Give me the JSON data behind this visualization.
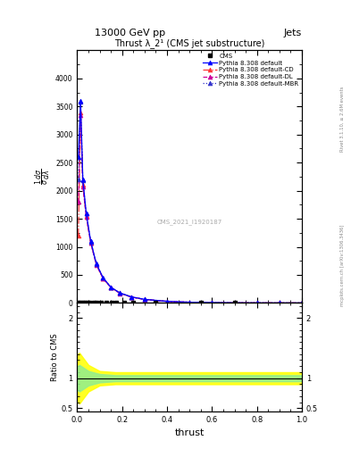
{
  "title_top": "13000 GeV pp",
  "title_right": "Jets",
  "plot_title": "Thrust λ_2¹ (CMS jet substructure)",
  "watermark": "CMS_2021_I1920187",
  "xlabel": "thrust",
  "ylabel_ratio": "Ratio to CMS",
  "right_label_top": "Rivet 3.1.10, ≥ 2.6M events",
  "right_label_bot": "mcplots.cern.ch [arXiv:1306.3436]",
  "cms_x": [
    0.005,
    0.015,
    0.025,
    0.035,
    0.045,
    0.055,
    0.075,
    0.085,
    0.105,
    0.13,
    0.155,
    0.175,
    0.21,
    0.25,
    0.35,
    0.55,
    0.7
  ],
  "cms_y": [
    2,
    2,
    2,
    2,
    2,
    2,
    2,
    2,
    2,
    2,
    2,
    2,
    2,
    2,
    2,
    2,
    2
  ],
  "pythia_x": [
    0.005,
    0.015,
    0.025,
    0.04,
    0.06,
    0.085,
    0.115,
    0.15,
    0.19,
    0.24,
    0.3,
    0.4,
    0.5,
    0.6,
    0.7,
    0.8,
    0.9,
    1.0
  ],
  "pythia_default_y": [
    2600,
    3600,
    2200,
    1600,
    1100,
    700,
    450,
    280,
    180,
    110,
    65,
    30,
    14,
    7,
    3,
    1.5,
    0.8,
    0.3
  ],
  "pythia_cd_y": [
    1200,
    3400,
    2100,
    1550,
    1080,
    685,
    440,
    275,
    175,
    108,
    63,
    28,
    13,
    6.5,
    2.9,
    1.4,
    0.75,
    0.28
  ],
  "pythia_dl_y": [
    1800,
    3350,
    2080,
    1540,
    1070,
    678,
    435,
    272,
    172,
    106,
    62,
    27.5,
    12.5,
    6.3,
    2.85,
    1.38,
    0.72,
    0.27
  ],
  "pythia_mbr_y": [
    2200,
    3580,
    2180,
    1590,
    1095,
    695,
    448,
    278,
    178,
    109,
    64,
    29.5,
    13.8,
    6.8,
    3.0,
    1.48,
    0.78,
    0.29
  ],
  "color_default": "#0000ff",
  "color_cd": "#ff3333",
  "color_dl": "#cc0099",
  "color_mbr": "#3333cc",
  "background_color": "#ffffff",
  "ylim_main": [
    0,
    4500
  ],
  "ylim_ratio": [
    0.45,
    2.25
  ],
  "xlim": [
    0.0,
    1.0
  ],
  "yticks_main": [
    0,
    500,
    1000,
    1500,
    2000,
    2500,
    3000,
    3500,
    4000
  ],
  "ytick_labels_main": [
    "0",
    "500",
    "1000",
    "1500",
    "2000",
    "2500",
    "3000",
    "3500",
    "4000"
  ],
  "ratio_yticks": [
    0.5,
    1.0,
    2.0
  ],
  "ratio_yticklabels": [
    "0.5",
    "1",
    "2"
  ]
}
